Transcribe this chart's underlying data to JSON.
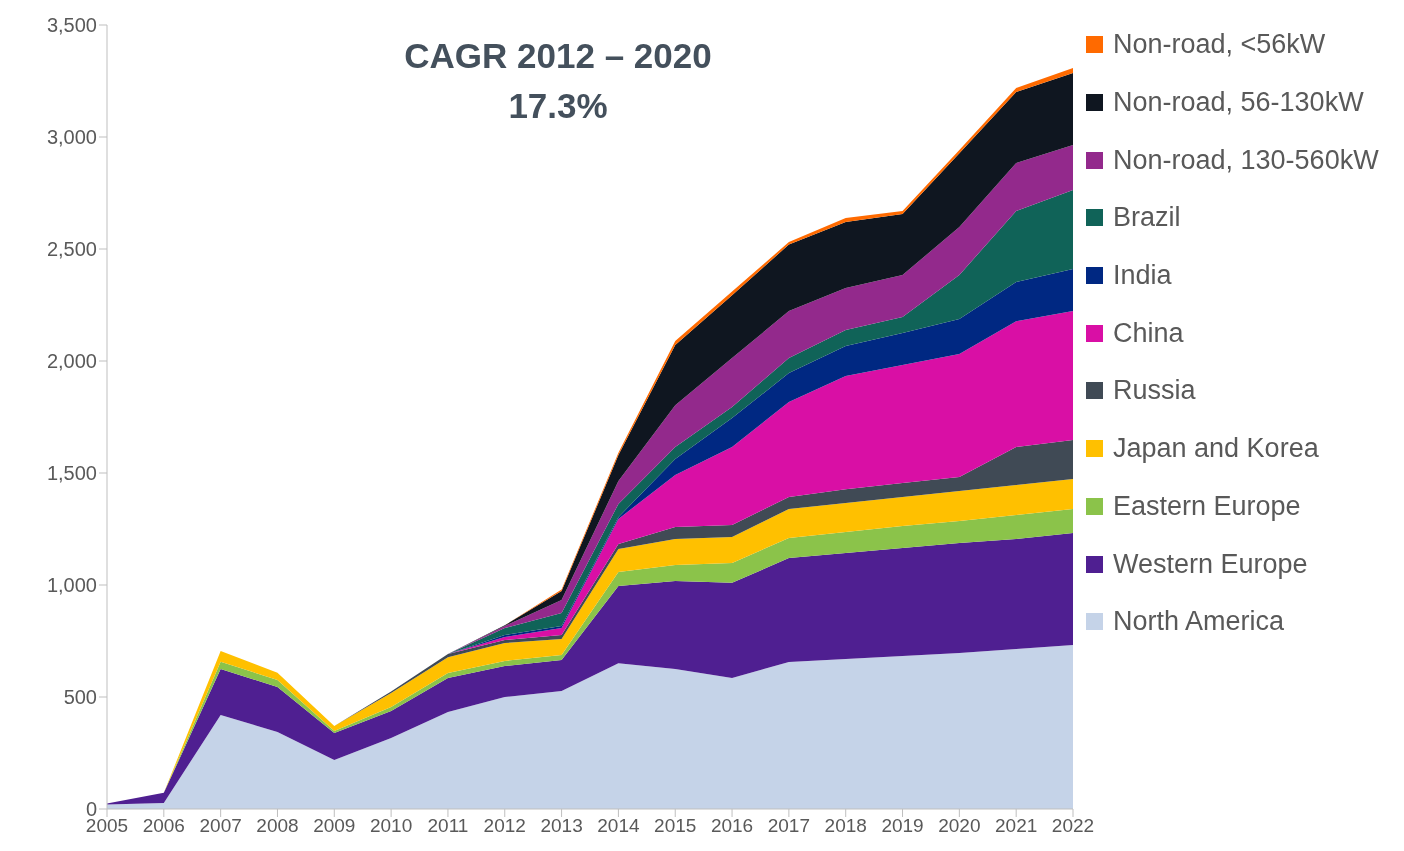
{
  "chart_data": {
    "type": "area",
    "stacked": true,
    "annotations": [
      "CAGR 2012 – 2020",
      "17.3%"
    ],
    "categories": [
      "2005",
      "2006",
      "2007",
      "2008",
      "2009",
      "2010",
      "2011",
      "2012",
      "2013",
      "2014",
      "2015",
      "2016",
      "2017",
      "2018",
      "2019",
      "2020",
      "2021",
      "2022"
    ],
    "ylim": [
      0,
      3500
    ],
    "yticks": [
      0,
      500,
      {
        "value": 1000,
        "label": "1,000"
      },
      {
        "value": 1500,
        "label": "1,500"
      },
      {
        "value": 2000,
        "label": "2,000"
      },
      {
        "value": 2500,
        "label": "2,500"
      },
      {
        "value": 3000,
        "label": "3,000"
      },
      {
        "value": 3500,
        "label": "3,500"
      }
    ],
    "grid": false,
    "legend": "right",
    "series": [
      {
        "name": "North America",
        "color": "#c5d3e8",
        "values": [
          20,
          27,
          420,
          344,
          219,
          317,
          433,
          500,
          527,
          651,
          625,
          585,
          656,
          670,
          683,
          696,
          714,
          732
        ]
      },
      {
        "name": "Western Europe",
        "color": "#4f1f91",
        "values": [
          5,
          45,
          205,
          201,
          120,
          121,
          152,
          138,
          138,
          344,
          393,
          425,
          464,
          473,
          482,
          491,
          491,
          500
        ]
      },
      {
        "name": "Eastern Europe",
        "color": "#8bc34a",
        "values": [
          0,
          0,
          32,
          31,
          9,
          17,
          22,
          23,
          22,
          63,
          71,
          88,
          90,
          94,
          98,
          99,
          107,
          107
        ]
      },
      {
        "name": "Japan and Korea",
        "color": "#ffc000",
        "values": [
          0,
          0,
          48,
          32,
          22,
          63,
          71,
          80,
          72,
          103,
          116,
          116,
          129,
          129,
          130,
          134,
          134,
          134
        ]
      },
      {
        "name": "Russia",
        "color": "#404a55",
        "values": [
          0,
          0,
          0,
          0,
          0,
          7,
          14,
          13,
          18,
          22,
          54,
          54,
          54,
          62,
          62,
          62,
          170,
          174
        ]
      },
      {
        "name": "China",
        "color": "#d90fa5",
        "values": [
          0,
          0,
          0,
          0,
          0,
          0,
          0,
          14,
          31,
          112,
          232,
          348,
          424,
          505,
          527,
          549,
          562,
          576
        ]
      },
      {
        "name": "India",
        "color": "#002882",
        "values": [
          0,
          0,
          0,
          0,
          0,
          0,
          0,
          9,
          9,
          8,
          71,
          129,
          129,
          134,
          143,
          156,
          175,
          188
        ]
      },
      {
        "name": "Brazil",
        "color": "#106358",
        "values": [
          0,
          0,
          0,
          0,
          0,
          0,
          0,
          31,
          58,
          59,
          54,
          50,
          67,
          71,
          71,
          197,
          317,
          352
        ]
      },
      {
        "name": "Non-road, 130-560kW",
        "color": "#93298c",
        "values": [
          0,
          0,
          0,
          0,
          0,
          0,
          0,
          9,
          58,
          102,
          187,
          218,
          210,
          188,
          188,
          214,
          214,
          201
        ]
      },
      {
        "name": "Non-road, 56-130kW",
        "color": "#0f1620",
        "values": [
          0,
          0,
          0,
          0,
          0,
          0,
          0,
          3,
          40,
          116,
          268,
          281,
          297,
          294,
          272,
          330,
          317,
          322
        ]
      },
      {
        "name": "Non-road, <56kW",
        "color": "#ff6a00",
        "values": [
          0,
          0,
          0,
          0,
          0,
          0,
          0,
          0,
          7,
          10,
          18,
          16,
          11,
          18,
          14,
          14,
          18,
          22
        ]
      }
    ]
  }
}
